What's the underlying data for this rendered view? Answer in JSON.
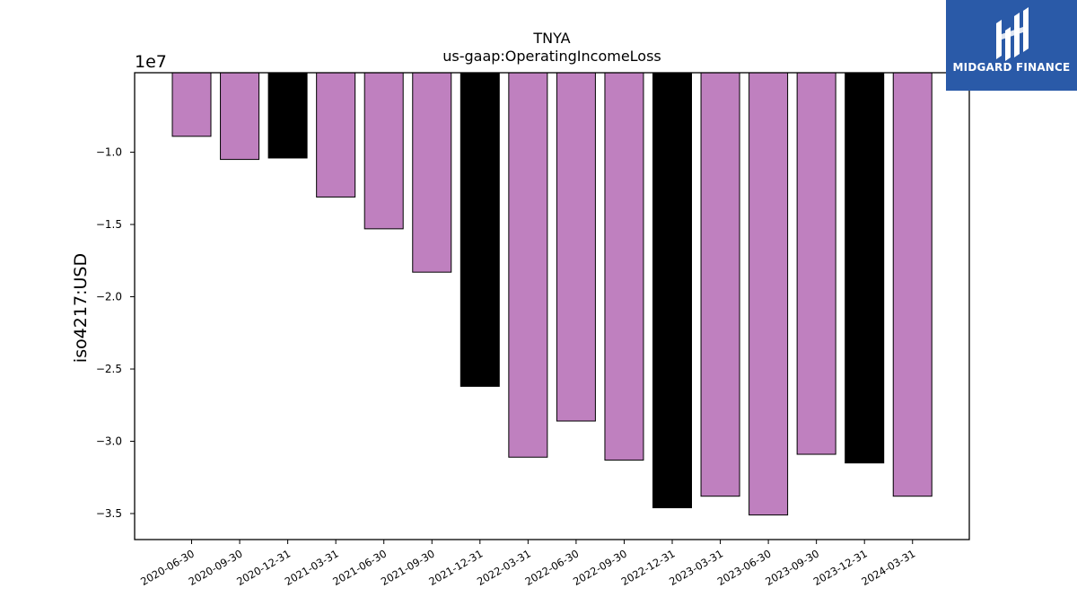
{
  "chart_data": {
    "type": "bar",
    "title": "TNYA",
    "subtitle": "us-gaap:OperatingIncomeLoss",
    "xlabel": "",
    "ylabel": "iso4217:USD",
    "y_offset_label": "1e7",
    "ylim": [
      -36800000,
      -4500000
    ],
    "yticks": [
      -10000000,
      -15000000,
      -20000000,
      -25000000,
      -30000000,
      -35000000
    ],
    "ytick_labels": [
      "−1.0",
      "−1.5",
      "−2.0",
      "−2.5",
      "−3.0",
      "−3.5"
    ],
    "categories": [
      "2020-06-30",
      "2020-09-30",
      "2020-12-31",
      "2021-03-31",
      "2021-06-30",
      "2021-09-30",
      "2021-12-31",
      "2022-03-31",
      "2022-06-30",
      "2022-09-30",
      "2022-12-31",
      "2023-03-31",
      "2023-06-30",
      "2023-09-30",
      "2023-12-31",
      "2024-03-31"
    ],
    "values": [
      -8900000,
      -10500000,
      -10400000,
      -13100000,
      -15300000,
      -18300000,
      -26200000,
      -31100000,
      -28600000,
      -31300000,
      -34600000,
      -33800000,
      -35100000,
      -30900000,
      -31500000,
      -33800000
    ],
    "bar_colors": [
      "#bf80bf",
      "#bf80bf",
      "#000000",
      "#bf80bf",
      "#bf80bf",
      "#bf80bf",
      "#000000",
      "#bf80bf",
      "#bf80bf",
      "#bf80bf",
      "#000000",
      "#bf80bf",
      "#bf80bf",
      "#bf80bf",
      "#000000",
      "#bf80bf"
    ],
    "grid": false,
    "legend": "none"
  },
  "logo": {
    "text": "MIDGARD FINANCE",
    "background": "#2a5aa8",
    "icon": "midgard-logo-icon"
  }
}
